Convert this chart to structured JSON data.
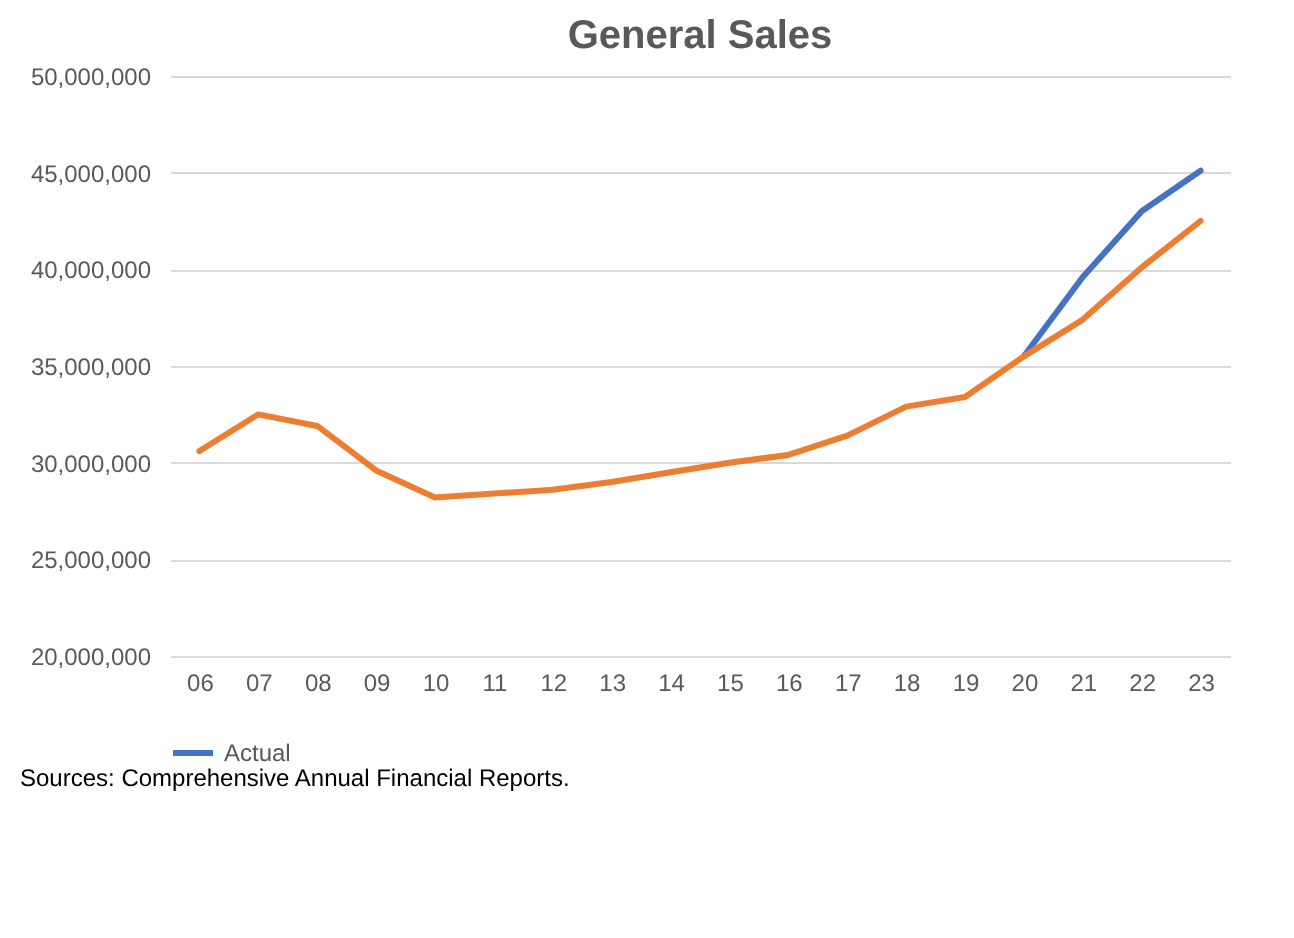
{
  "chart_data": {
    "type": "line",
    "title": "General Sales",
    "categories": [
      "06",
      "07",
      "08",
      "09",
      "10",
      "11",
      "12",
      "13",
      "14",
      "15",
      "16",
      "17",
      "18",
      "19",
      "20",
      "21",
      "22",
      "23"
    ],
    "series": [
      {
        "name": "Actual",
        "color": "#4472c4",
        "values": [
          null,
          null,
          null,
          null,
          null,
          null,
          null,
          null,
          null,
          null,
          null,
          null,
          null,
          null,
          35500000,
          39600000,
          43000000,
          45100000
        ]
      },
      {
        "color": "#ed7d31",
        "values": [
          30600000,
          32500000,
          31900000,
          29600000,
          28200000,
          28400000,
          28600000,
          29000000,
          29500000,
          30000000,
          30400000,
          31400000,
          32900000,
          33400000,
          35500000,
          37400000,
          40100000,
          42500000
        ]
      }
    ],
    "ylim": [
      20000000,
      50000000
    ],
    "yticks": [
      {
        "value": 20000000,
        "label": "20,000,000"
      },
      {
        "value": 25000000,
        "label": "25,000,000"
      },
      {
        "value": 30000000,
        "label": "30,000,000"
      },
      {
        "value": 35000000,
        "label": "35,000,000"
      },
      {
        "value": 40000000,
        "label": "40,000,000"
      },
      {
        "value": 45000000,
        "label": "45,000,000"
      },
      {
        "value": 50000000,
        "label": "50,000,000"
      }
    ],
    "grid": "y",
    "legend": "bottom",
    "line_style": "solid",
    "marker": "none",
    "annotations": [
      "Sources: Comprehensive Annual Financial Reports."
    ]
  }
}
